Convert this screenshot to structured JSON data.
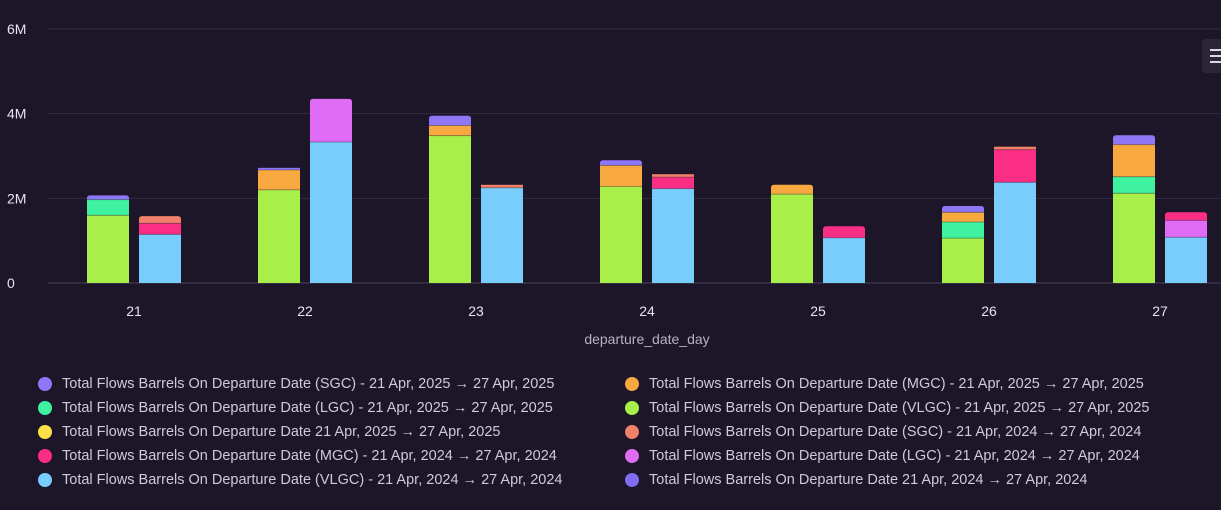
{
  "chart_data": {
    "type": "bar",
    "stacked": true,
    "xlabel": "departure_date_day",
    "ylabel": "",
    "ylim": [
      0,
      6000000
    ],
    "yticks": [
      {
        "value": 0,
        "label": "0"
      },
      {
        "value": 2000000,
        "label": "2M"
      },
      {
        "value": 4000000,
        "label": "4M"
      },
      {
        "value": 6000000,
        "label": "6M"
      }
    ],
    "grid": true,
    "categories": [
      "21",
      "22",
      "23",
      "24",
      "25",
      "26",
      "27"
    ],
    "stacks": [
      {
        "id": "2025",
        "series": [
          {
            "name": "Total Flows Barrels On Departure Date (VLGC) - 21 Apr, 2025 → 27 Apr, 2025",
            "color": "#a8ef4a",
            "values": [
              1600000,
              2200000,
              3480000,
              2280000,
              2100000,
              1060000,
              2120000
            ]
          },
          {
            "name": "Total Flows Barrels On Departure Date (LGC) - 21 Apr, 2025 → 27 Apr, 2025",
            "color": "#3ef2a0",
            "values": [
              370000,
              0,
              0,
              0,
              0,
              380000,
              390000
            ]
          },
          {
            "name": "Total Flows Barrels On Departure Date (MGC) - 21 Apr, 2025 → 27 Apr, 2025",
            "color": "#f7a93f",
            "values": [
              0,
              470000,
              240000,
              500000,
              220000,
              230000,
              760000
            ]
          },
          {
            "name": "Total Flows Barrels On Departure Date (SGC) - 21 Apr, 2025 → 27 Apr, 2025",
            "color": "#8e77f7",
            "values": [
              100000,
              50000,
              230000,
              120000,
              0,
              150000,
              220000
            ]
          },
          {
            "name": "Total Flows Barrels On Departure Date 21 Apr, 2025 → 27 Apr, 2025",
            "color": "#fde048",
            "values": [
              0,
              0,
              0,
              0,
              0,
              0,
              0
            ]
          }
        ]
      },
      {
        "id": "2024",
        "series": [
          {
            "name": "Total Flows Barrels On Departure Date (VLGC) - 21 Apr, 2024 → 27 Apr, 2024",
            "color": "#78cdfc",
            "values": [
              1150000,
              3330000,
              2250000,
              2230000,
              1070000,
              2380000,
              1080000
            ]
          },
          {
            "name": "Total Flows Barrels On Departure Date (LGC) - 21 Apr, 2024 → 27 Apr, 2024",
            "color": "#e06cf6",
            "values": [
              0,
              1020000,
              0,
              0,
              0,
              0,
              400000
            ]
          },
          {
            "name": "Total Flows Barrels On Departure Date (MGC) - 21 Apr, 2024 → 27 Apr, 2024",
            "color": "#fb2e86",
            "values": [
              260000,
              0,
              0,
              270000,
              270000,
              770000,
              190000
            ]
          },
          {
            "name": "Total Flows Barrels On Departure Date (SGC) - 21 Apr, 2024 → 27 Apr, 2024",
            "color": "#f0806a",
            "values": [
              170000,
              0,
              70000,
              70000,
              0,
              70000,
              0
            ]
          },
          {
            "name": "Total Flows Barrels On Departure Date 21 Apr, 2024 → 27 Apr, 2024",
            "color": "#7f6cf2",
            "values": [
              0,
              0,
              0,
              0,
              0,
              0,
              0
            ]
          }
        ]
      }
    ],
    "legend": [
      {
        "name": "Total Flows Barrels On Departure Date (SGC) - 21 Apr, 2025 → 27 Apr, 2025",
        "color": "#8e77f7"
      },
      {
        "name": "Total Flows Barrels On Departure Date (MGC) - 21 Apr, 2025 → 27 Apr, 2025",
        "color": "#f7a93f"
      },
      {
        "name": "Total Flows Barrels On Departure Date (LGC) - 21 Apr, 2025 → 27 Apr, 2025",
        "color": "#3ef2a0"
      },
      {
        "name": "Total Flows Barrels On Departure Date (VLGC) - 21 Apr, 2025 → 27 Apr, 2025",
        "color": "#a8ef4a"
      },
      {
        "name": "Total Flows Barrels On Departure Date 21 Apr, 2025 → 27 Apr, 2025",
        "color": "#fde048"
      },
      {
        "name": "Total Flows Barrels On Departure Date (SGC) - 21 Apr, 2024 → 27 Apr, 2024",
        "color": "#f0806a"
      },
      {
        "name": "Total Flows Barrels On Departure Date (MGC) - 21 Apr, 2024 → 27 Apr, 2024",
        "color": "#fb2e86"
      },
      {
        "name": "Total Flows Barrels On Departure Date (LGC) - 21 Apr, 2024 → 27 Apr, 2024",
        "color": "#e06cf6"
      },
      {
        "name": "Total Flows Barrels On Departure Date (VLGC) - 21 Apr, 2024 → 27 Apr, 2024",
        "color": "#78cdfc"
      },
      {
        "name": "Total Flows Barrels On Departure Date 21 Apr, 2024 → 27 Apr, 2024",
        "color": "#7f6cf2"
      }
    ]
  },
  "toolbar": {
    "menu_icon": "hamburger-menu-icon"
  }
}
